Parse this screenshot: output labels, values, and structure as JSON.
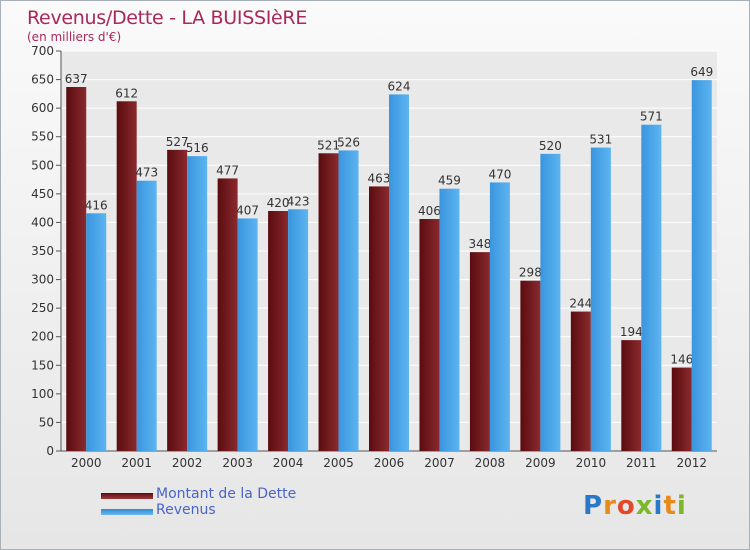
{
  "header": {
    "title": "Revenus/Dette - LA BUISSIèRE",
    "subtitle": "(en milliers d'€)"
  },
  "colors": {
    "dette": "#7a1e22",
    "revenus": "#4aa3e8",
    "title": "#a8285a",
    "legend_text": "#4a64c8"
  },
  "legend": [
    {
      "label": "Montant de la Dette",
      "color": "#7a1e22"
    },
    {
      "label": "Revenus",
      "color": "#4aa3e8"
    }
  ],
  "logo": {
    "text": "Proxiti"
  },
  "chart_data": {
    "type": "bar",
    "title": "Revenus/Dette - LA BUISSIèRE",
    "ylabel": "(en milliers d'€)",
    "ylim": [
      0,
      700
    ],
    "yticks": [
      0,
      50,
      100,
      150,
      200,
      250,
      300,
      350,
      400,
      450,
      500,
      550,
      600,
      650,
      700
    ],
    "grid": true,
    "categories": [
      "2000",
      "2001",
      "2002",
      "2003",
      "2004",
      "2005",
      "2006",
      "2007",
      "2008",
      "2009",
      "2010",
      "2011",
      "2012"
    ],
    "series": [
      {
        "name": "Montant de la Dette",
        "values": [
          637,
          612,
          527,
          477,
          420,
          521,
          463,
          406,
          348,
          298,
          244,
          194,
          146
        ]
      },
      {
        "name": "Revenus",
        "values": [
          416,
          473,
          516,
          407,
          423,
          526,
          624,
          459,
          470,
          520,
          531,
          571,
          649
        ]
      }
    ],
    "legend_position": "bottom-left"
  }
}
